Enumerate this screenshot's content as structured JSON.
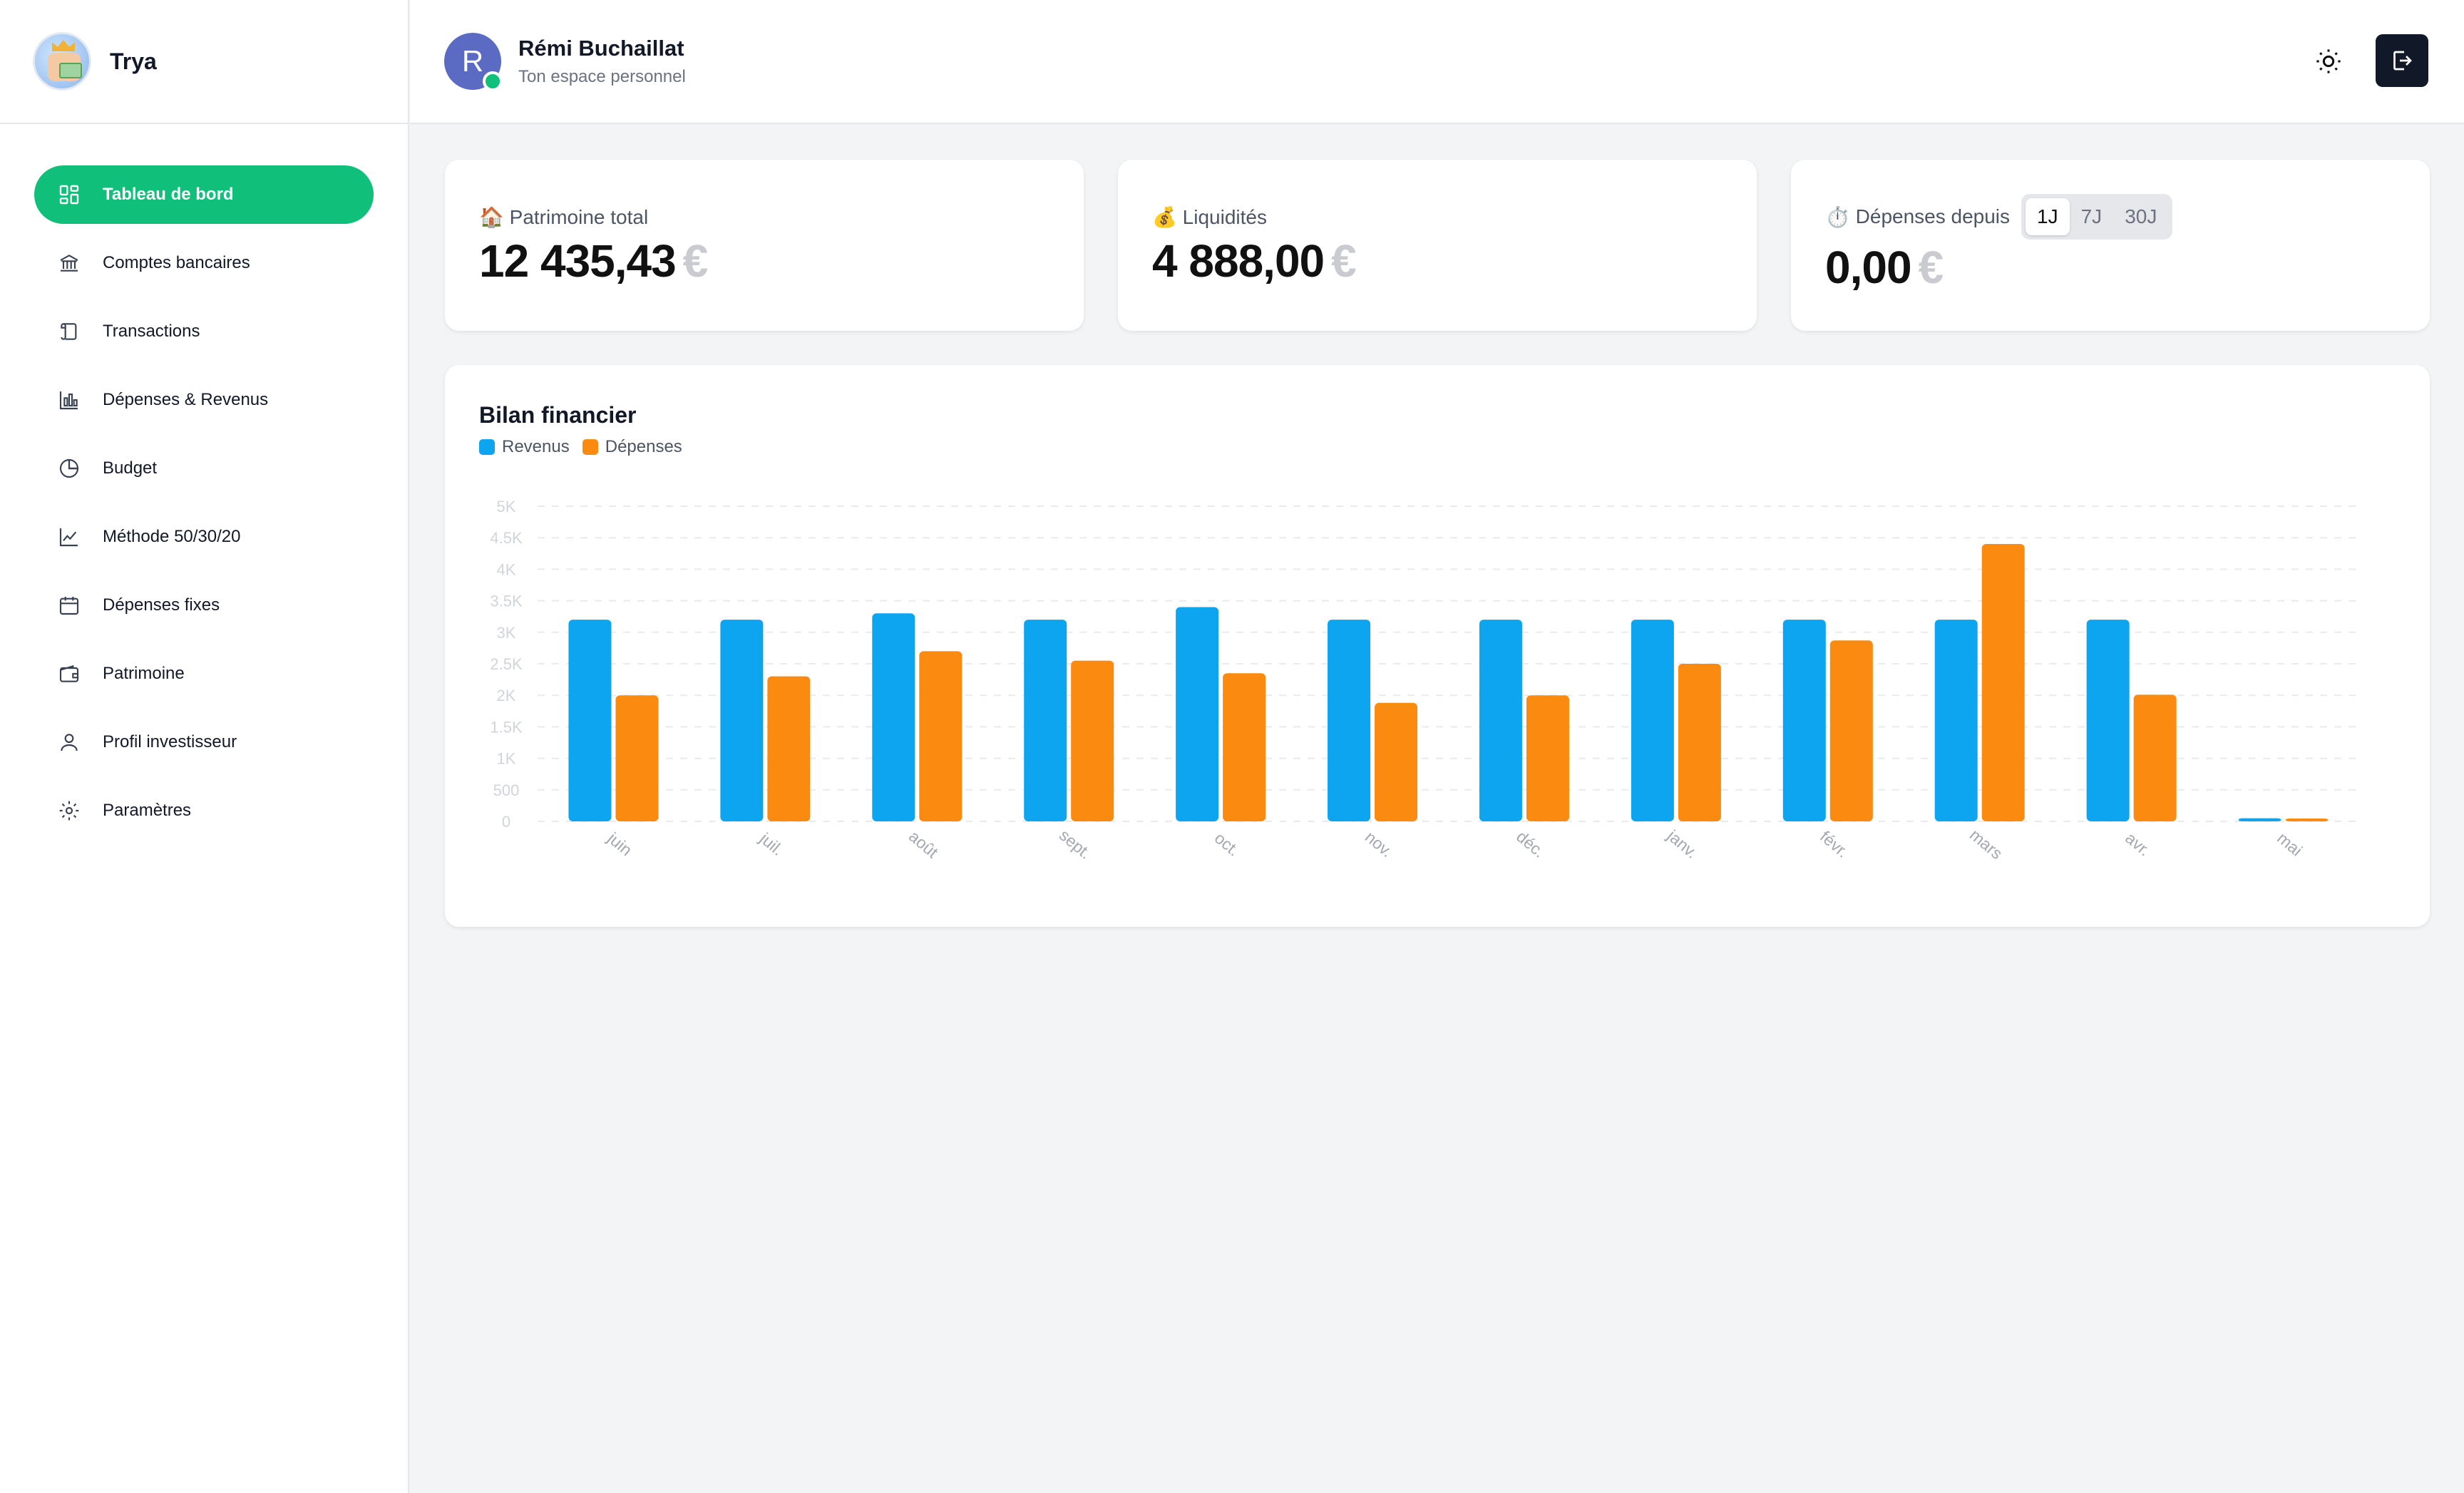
{
  "brand": {
    "name": "Trya"
  },
  "sidebar": {
    "items": [
      {
        "label": "Tableau de bord",
        "icon": "dashboard-icon",
        "active": true
      },
      {
        "label": "Comptes bancaires",
        "icon": "bank-icon"
      },
      {
        "label": "Transactions",
        "icon": "scroll-icon"
      },
      {
        "label": "Dépenses & Revenus",
        "icon": "bar-chart-icon"
      },
      {
        "label": "Budget",
        "icon": "pie-chart-icon"
      },
      {
        "label": "Méthode 50/30/20",
        "icon": "line-chart-icon"
      },
      {
        "label": "Dépenses fixes",
        "icon": "calendar-icon"
      },
      {
        "label": "Patrimoine",
        "icon": "wallet-icon"
      },
      {
        "label": "Profil investisseur",
        "icon": "user-icon"
      },
      {
        "label": "Paramètres",
        "icon": "gear-icon"
      }
    ]
  },
  "header": {
    "avatar_initial": "R",
    "user_name": "Rémi Buchaillat",
    "subtitle": "Ton espace personnel"
  },
  "kpis": {
    "patrimoine": {
      "emoji": "🏠",
      "label": "Patrimoine total",
      "value": "12 435,43",
      "currency": "€"
    },
    "liquidites": {
      "emoji": "💰",
      "label": "Liquidités",
      "value": "4 888,00",
      "currency": "€"
    },
    "depenses": {
      "emoji": "⏱️",
      "label": "Dépenses depuis",
      "value": "0,00",
      "currency": "€",
      "periods": [
        "1J",
        "7J",
        "30J"
      ],
      "selected": "1J"
    }
  },
  "colors": {
    "revenus": "#0ea5f0",
    "depenses": "#fb8a10",
    "accent": "#10bf7a"
  },
  "chart_data": {
    "type": "bar",
    "title": "Bilan financier",
    "categories": [
      "juin",
      "juil.",
      "août",
      "sept.",
      "oct.",
      "nov.",
      "déc.",
      "janv.",
      "févr.",
      "mars",
      "avr.",
      "mai"
    ],
    "series": [
      {
        "name": "Revenus",
        "values": [
          3200,
          3200,
          3300,
          3200,
          3400,
          3200,
          3200,
          3200,
          3200,
          3200,
          3200,
          50
        ]
      },
      {
        "name": "Dépenses",
        "values": [
          2000,
          2300,
          2700,
          2550,
          2350,
          1880,
          2000,
          2500,
          2870,
          4400,
          2010,
          40
        ]
      }
    ],
    "yticks": [
      "0",
      "500",
      "1K",
      "1.5K",
      "2K",
      "2.5K",
      "3K",
      "3.5K",
      "4K",
      "4.5K",
      "5K"
    ],
    "ylim": [
      0,
      5000
    ],
    "grid": true,
    "legend": "top-left"
  }
}
